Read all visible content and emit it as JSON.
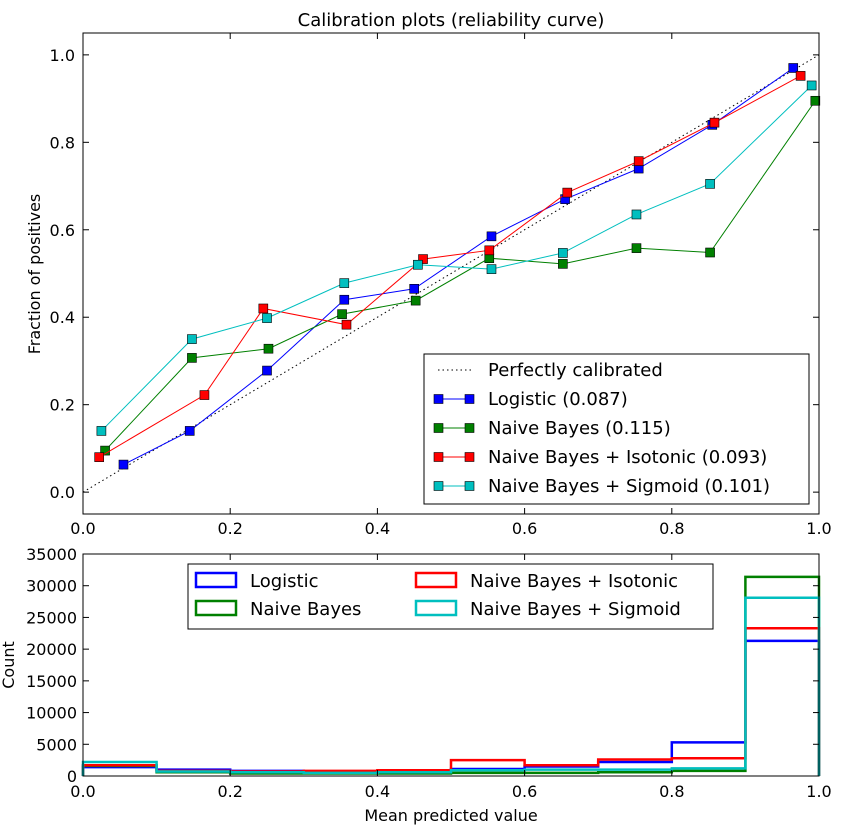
{
  "chart_data": [
    {
      "type": "line",
      "title": "Calibration plots  (reliability curve)",
      "xlabel": "",
      "ylabel": "Fraction of positives",
      "xlim": [
        0.0,
        1.0
      ],
      "ylim": [
        -0.05,
        1.05
      ],
      "xticks": [
        "0.0",
        "0.2",
        "0.4",
        "0.6",
        "0.8",
        "1.0"
      ],
      "yticks": [
        "0.0",
        "0.2",
        "0.4",
        "0.6",
        "0.8",
        "1.0"
      ],
      "legend_position": "bottom-right",
      "reference_line": {
        "name": "Perfectly calibrated",
        "x": [
          0,
          1
        ],
        "y": [
          0,
          1
        ],
        "color": "#000000",
        "style": "dotted"
      },
      "series": [
        {
          "name": "Logistic (0.087)",
          "color": "#0000ff",
          "x": [
            0.055,
            0.145,
            0.25,
            0.355,
            0.45,
            0.555,
            0.655,
            0.755,
            0.855,
            0.965
          ],
          "y": [
            0.063,
            0.14,
            0.278,
            0.44,
            0.465,
            0.585,
            0.67,
            0.74,
            0.84,
            0.97
          ]
        },
        {
          "name": "Naive Bayes (0.115)",
          "color": "#008000",
          "x": [
            0.03,
            0.148,
            0.252,
            0.352,
            0.452,
            0.552,
            0.652,
            0.752,
            0.852,
            0.995
          ],
          "y": [
            0.095,
            0.307,
            0.328,
            0.407,
            0.438,
            0.535,
            0.522,
            0.558,
            0.548,
            0.895
          ]
        },
        {
          "name": "Naive Bayes + Isotonic (0.093)",
          "color": "#ff0000",
          "x": [
            0.022,
            0.165,
            0.245,
            0.358,
            0.462,
            0.552,
            0.658,
            0.755,
            0.858,
            0.975
          ],
          "y": [
            0.08,
            0.222,
            0.42,
            0.383,
            0.533,
            0.553,
            0.685,
            0.757,
            0.845,
            0.952
          ]
        },
        {
          "name": "Naive Bayes + Sigmoid (0.101)",
          "color": "#00bfbf",
          "x": [
            0.025,
            0.148,
            0.25,
            0.355,
            0.455,
            0.555,
            0.652,
            0.752,
            0.852,
            0.99
          ],
          "y": [
            0.14,
            0.35,
            0.398,
            0.478,
            0.52,
            0.51,
            0.547,
            0.635,
            0.705,
            0.93
          ]
        }
      ]
    },
    {
      "type": "histogram",
      "title": "",
      "xlabel": "Mean predicted value",
      "ylabel": "Count",
      "xlim": [
        0.0,
        1.0
      ],
      "ylim": [
        0,
        35000
      ],
      "xticks": [
        "0.0",
        "0.2",
        "0.4",
        "0.6",
        "0.8",
        "1.0"
      ],
      "yticks": [
        "0",
        "5000",
        "10000",
        "15000",
        "20000",
        "25000",
        "30000",
        "35000"
      ],
      "legend_position": "upper-center",
      "bins": [
        0.0,
        0.1,
        0.2,
        0.3,
        0.4,
        0.5,
        0.6,
        0.7,
        0.8,
        0.9,
        1.0
      ],
      "series": [
        {
          "name": "Logistic",
          "color": "#0000ff",
          "values": [
            1400,
            1000,
            800,
            700,
            700,
            1100,
            1500,
            2200,
            5300,
            21300
          ]
        },
        {
          "name": "Naive Bayes",
          "color": "#008000",
          "values": [
            1600,
            600,
            400,
            400,
            400,
            500,
            500,
            600,
            800,
            31400
          ]
        },
        {
          "name": "Naive Bayes + Isotonic",
          "color": "#ff0000",
          "values": [
            1700,
            800,
            700,
            800,
            900,
            2500,
            1700,
            2600,
            2800,
            23300
          ]
        },
        {
          "name": "Naive Bayes + Sigmoid",
          "color": "#00bfbf",
          "values": [
            2200,
            700,
            600,
            500,
            600,
            900,
            1000,
            1000,
            1200,
            28100
          ]
        }
      ]
    }
  ]
}
